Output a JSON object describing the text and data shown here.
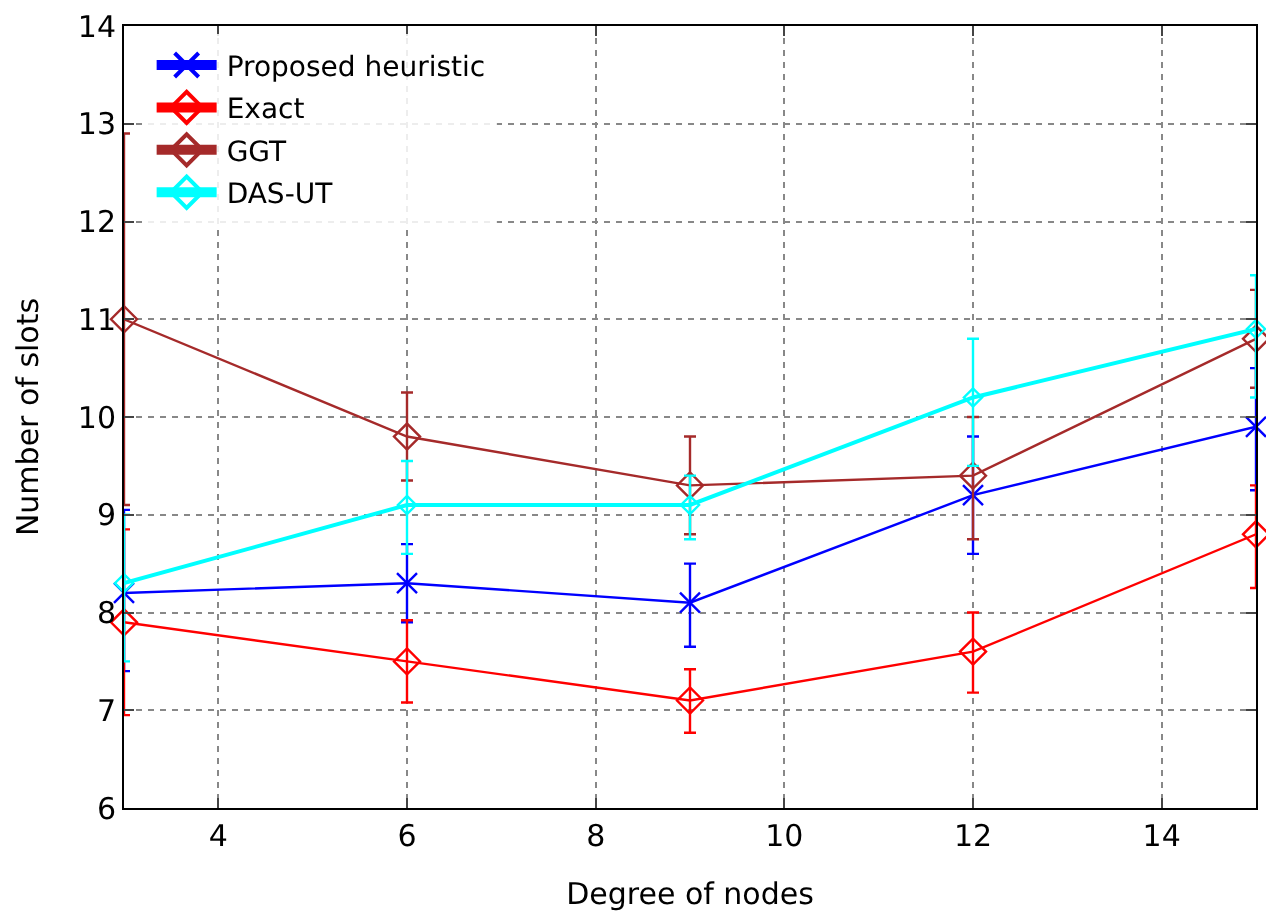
{
  "chart_data": {
    "type": "line",
    "xlabel": "Degree of nodes",
    "ylabel": "Number of slots",
    "x": [
      3,
      6,
      9,
      12,
      15
    ],
    "xlim": [
      3,
      15
    ],
    "xticks": [
      4,
      6,
      8,
      10,
      12,
      14
    ],
    "ylim": [
      6,
      14
    ],
    "yticks": [
      6,
      7,
      8,
      9,
      10,
      11,
      12,
      13,
      14
    ],
    "grid": true,
    "legend": "top left",
    "line_style": "solid",
    "series": [
      {
        "name": "Proposed heuristic",
        "color": "#0000ff",
        "marker": "cross",
        "values": [
          8.2,
          8.3,
          8.1,
          9.2,
          9.9
        ],
        "errors": [
          [
            7.4,
            9.05
          ],
          [
            7.9,
            8.7
          ],
          [
            7.65,
            8.5
          ],
          [
            8.6,
            9.8
          ],
          [
            9.25,
            10.5
          ]
        ]
      },
      {
        "name": "Exact",
        "color": "#ff0000",
        "marker": "diamond",
        "values": [
          7.9,
          7.5,
          7.1,
          7.6,
          8.8
        ],
        "errors": [
          [
            6.95,
            8.85
          ],
          [
            7.08,
            7.92
          ],
          [
            6.77,
            7.42
          ],
          [
            7.18,
            8.0
          ],
          [
            8.25,
            9.3
          ]
        ]
      },
      {
        "name": "GGT",
        "color": "#a52a2a",
        "marker": "diamond",
        "values": [
          11.0,
          9.8,
          9.3,
          9.4,
          10.8
        ],
        "errors": [
          [
            9.1,
            12.9
          ],
          [
            9.35,
            10.25
          ],
          [
            8.8,
            9.8
          ],
          [
            8.75,
            10.0
          ],
          [
            10.3,
            11.3
          ]
        ]
      },
      {
        "name": "DAS-UT",
        "color": "#00ffff",
        "marker": "diamond",
        "values": [
          8.3,
          9.1,
          9.1,
          10.2,
          10.9
        ],
        "errors": [
          [
            7.5,
            9.0
          ],
          [
            8.6,
            9.55
          ],
          [
            8.75,
            9.4
          ],
          [
            9.5,
            10.8
          ],
          [
            10.2,
            11.45
          ]
        ]
      }
    ]
  }
}
